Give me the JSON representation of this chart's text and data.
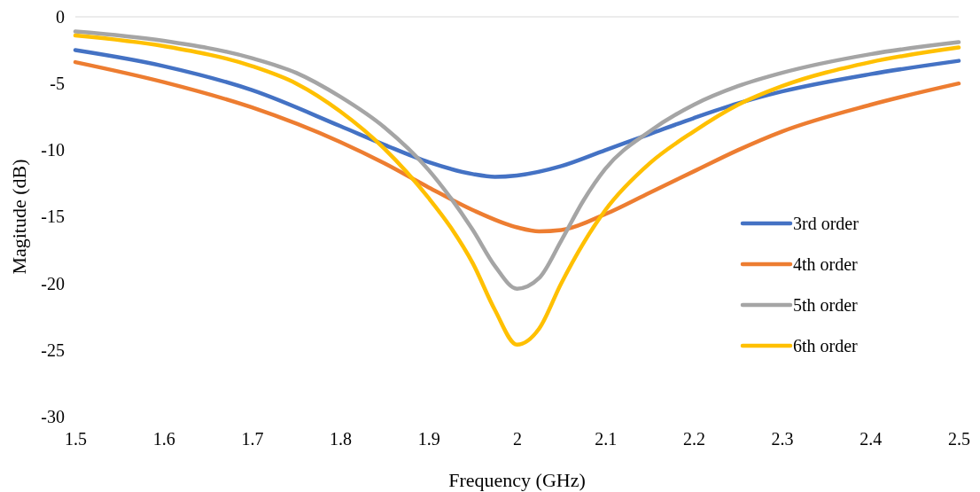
{
  "chart_data": {
    "type": "line",
    "xlabel": "Frequency (GHz)",
    "ylabel": "Magitude (dB)",
    "xlim": [
      1.5,
      2.5
    ],
    "xticks": [
      1.5,
      1.6,
      1.7,
      1.8,
      1.9,
      2,
      2.1,
      2.2,
      2.3,
      2.4,
      2.5
    ],
    "ylim": [
      -30,
      0
    ],
    "yticks": [
      -30,
      -25,
      -20,
      -15,
      -10,
      -5,
      0
    ],
    "grid": false,
    "legend": "right",
    "marker": "none",
    "line_style": "solid",
    "series": [
      {
        "name": "3rd order",
        "color": "#4472c4",
        "x": [
          1.5,
          1.6,
          1.7,
          1.8,
          1.85,
          1.9,
          1.95,
          1.975,
          2,
          2.05,
          2.1,
          2.15,
          2.2,
          2.25,
          2.3,
          2.4,
          2.5
        ],
        "values": [
          -2.5,
          -3.7,
          -5.5,
          -8.2,
          -9.6,
          -10.9,
          -11.8,
          -12,
          -11.9,
          -11.2,
          -10,
          -8.8,
          -7.6,
          -6.5,
          -5.6,
          -4.3,
          -3.3
        ]
      },
      {
        "name": "4th order",
        "color": "#ed7d31",
        "x": [
          1.5,
          1.6,
          1.7,
          1.8,
          1.85,
          1.9,
          1.95,
          2,
          2.025,
          2.05,
          2.1,
          2.15,
          2.2,
          2.25,
          2.3,
          2.4,
          2.5
        ],
        "values": [
          -3.4,
          -4.9,
          -6.8,
          -9.4,
          -11,
          -12.8,
          -14.5,
          -15.8,
          -16.1,
          -16,
          -14.8,
          -13.2,
          -11.6,
          -10,
          -8.6,
          -6.6,
          -5
        ]
      },
      {
        "name": "5th order",
        "color": "#a5a5a5",
        "x": [
          1.5,
          1.6,
          1.7,
          1.75,
          1.8,
          1.85,
          1.9,
          1.925,
          1.95,
          1.975,
          2,
          2.025,
          2.05,
          2.075,
          2.1,
          2.15,
          2.2,
          2.25,
          2.3,
          2.4,
          2.5
        ],
        "values": [
          -1.1,
          -1.8,
          -3.1,
          -4.2,
          -6,
          -8.3,
          -11.5,
          -13.6,
          -16,
          -18.7,
          -20.4,
          -19.6,
          -16.8,
          -13.8,
          -11.4,
          -8.6,
          -6.6,
          -5.2,
          -4.2,
          -2.8,
          -1.9
        ]
      },
      {
        "name": "6th order",
        "color": "#ffc000",
        "x": [
          1.5,
          1.6,
          1.7,
          1.75,
          1.8,
          1.85,
          1.9,
          1.925,
          1.95,
          1.975,
          2,
          2.025,
          2.05,
          2.075,
          2.1,
          2.15,
          2.2,
          2.25,
          2.3,
          2.4,
          2.5
        ],
        "values": [
          -1.4,
          -2.2,
          -3.7,
          -5,
          -7.1,
          -9.9,
          -13.6,
          -15.8,
          -18.5,
          -22,
          -24.6,
          -23.4,
          -20,
          -17,
          -14.5,
          -11,
          -8.6,
          -6.6,
          -5.2,
          -3.4,
          -2.3
        ]
      }
    ]
  }
}
